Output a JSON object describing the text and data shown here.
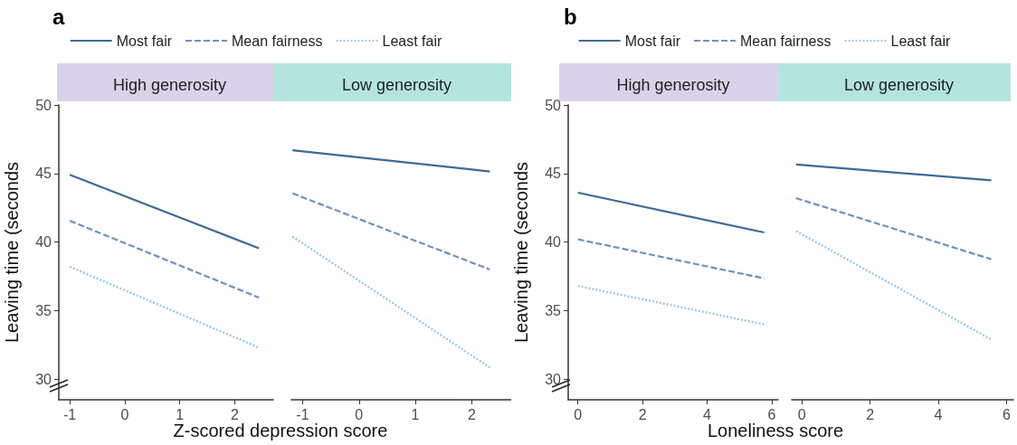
{
  "chart_data": [
    {
      "type": "line",
      "title": "High generosity",
      "xlabel": "Z-scored depression score",
      "ylabel": "Leaving time (seconds",
      "annotations": [
        "a"
      ],
      "legend": "top",
      "xlim": [
        -1.2,
        2.7
      ],
      "xticks": [
        -1,
        0,
        1,
        2
      ],
      "ylim": [
        28.5,
        50
      ],
      "yticks": [
        30,
        35,
        40,
        45,
        50
      ],
      "series": [
        {
          "name": "Most fair",
          "color": "#3d6a98",
          "line_style": "solid",
          "x": [
            -1,
            2.44
          ],
          "values": [
            44.9,
            39.55
          ]
        },
        {
          "name": "Mean fairness",
          "color": "#6b93bf",
          "line_style": "dashed",
          "x": [
            -1,
            2.44
          ],
          "values": [
            41.55,
            35.95
          ]
        },
        {
          "name": "Least fair",
          "color": "#9ccaea",
          "line_style": "dotted",
          "x": [
            -1,
            2.44
          ],
          "values": [
            38.2,
            32.3
          ]
        }
      ]
    },
    {
      "type": "line",
      "title": "Low generosity",
      "tick_labels": "x",
      "xlim": [
        -1.2,
        2.7
      ],
      "xticks": [
        -1,
        0,
        1,
        2
      ],
      "ylim": [
        28.5,
        50
      ],
      "series": [
        {
          "color": "#3d6a98",
          "line_style": "solid",
          "x": [
            -1.18,
            2.32
          ],
          "values": [
            46.7,
            45.15
          ]
        },
        {
          "color": "#6b93bf",
          "line_style": "dashed",
          "x": [
            -1.18,
            2.32
          ],
          "values": [
            43.55,
            38.0
          ]
        },
        {
          "color": "#9ccaea",
          "line_style": "dotted",
          "x": [
            -1.18,
            2.32
          ],
          "values": [
            40.4,
            30.85
          ]
        }
      ]
    },
    {
      "type": "line",
      "title": "High generosity",
      "xlabel": "Loneliness score",
      "ylabel": "Leaving time (seconds",
      "annotations": [
        "b"
      ],
      "legend": "top",
      "xlim": [
        -0.3,
        6.2
      ],
      "xticks": [
        0,
        2,
        4,
        6
      ],
      "ylim": [
        28.5,
        50
      ],
      "yticks": [
        30,
        35,
        40,
        45,
        50
      ],
      "series": [
        {
          "name": "Most fair",
          "color": "#3d6a98",
          "line_style": "solid",
          "x": [
            0,
            5.77
          ],
          "values": [
            43.6,
            40.7
          ]
        },
        {
          "name": "Mean fairness",
          "color": "#6b93bf",
          "line_style": "dashed",
          "x": [
            0,
            5.77
          ],
          "values": [
            40.2,
            37.35
          ]
        },
        {
          "name": "Least fair",
          "color": "#9ccaea",
          "line_style": "dotted",
          "x": [
            0,
            5.77
          ],
          "values": [
            36.8,
            34.0
          ]
        }
      ]
    },
    {
      "type": "line",
      "title": "Low generosity",
      "tick_labels": "x",
      "xlim": [
        -0.3,
        6.2
      ],
      "xticks": [
        0,
        2,
        4,
        6
      ],
      "ylim": [
        28.5,
        50
      ],
      "series": [
        {
          "color": "#3d6a98",
          "line_style": "solid",
          "x": [
            -0.17,
            5.55
          ],
          "values": [
            45.65,
            44.5
          ]
        },
        {
          "color": "#6b93bf",
          "line_style": "dashed",
          "x": [
            -0.17,
            5.55
          ],
          "values": [
            43.2,
            38.75
          ]
        },
        {
          "color": "#9ccaea",
          "line_style": "dotted",
          "x": [
            -0.17,
            5.55
          ],
          "values": [
            40.8,
            32.9
          ]
        }
      ]
    }
  ]
}
